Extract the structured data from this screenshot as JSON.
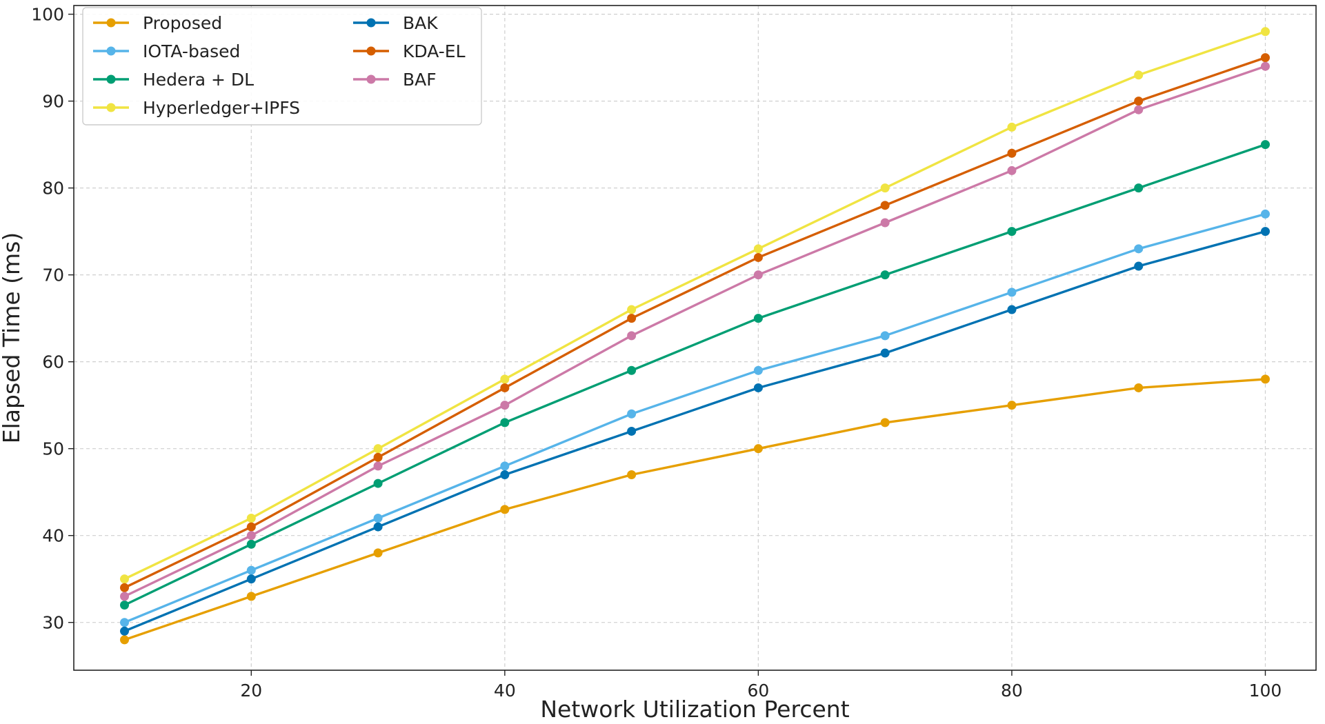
{
  "chart_data": {
    "type": "line",
    "title": "",
    "xlabel": "Network Utilization Percent",
    "ylabel": "Elapsed Time (ms)",
    "x": [
      10,
      20,
      30,
      40,
      50,
      60,
      70,
      80,
      90,
      100
    ],
    "xlim": [
      6,
      104
    ],
    "ylim": [
      24.5,
      101
    ],
    "xticks": [
      20,
      40,
      60,
      80,
      100
    ],
    "yticks": [
      30,
      40,
      50,
      60,
      70,
      80,
      90,
      100
    ],
    "grid": true,
    "legend_position": "top-left",
    "legend_columns": 2,
    "series": [
      {
        "name": "Proposed",
        "color": "#E69F00",
        "values": [
          28,
          33,
          38,
          43,
          47,
          50,
          53,
          55,
          57,
          58
        ]
      },
      {
        "name": "IOTA-based",
        "color": "#56B4E9",
        "values": [
          30,
          36,
          42,
          48,
          54,
          59,
          63,
          68,
          73,
          77
        ]
      },
      {
        "name": "Hedera + DL",
        "color": "#009E73",
        "values": [
          32,
          39,
          46,
          53,
          59,
          65,
          70,
          75,
          80,
          85
        ]
      },
      {
        "name": "Hyperledger+IPFS",
        "color": "#F0E442",
        "values": [
          35,
          42,
          50,
          58,
          66,
          73,
          80,
          87,
          93,
          98
        ]
      },
      {
        "name": "BAK",
        "color": "#0072B2",
        "values": [
          29,
          35,
          41,
          47,
          52,
          57,
          61,
          66,
          71,
          75
        ]
      },
      {
        "name": "KDA-EL",
        "color": "#D55E00",
        "values": [
          34,
          41,
          49,
          57,
          65,
          72,
          78,
          84,
          90,
          95
        ]
      },
      {
        "name": "BAF",
        "color": "#CC79A7",
        "values": [
          33,
          40,
          48,
          55,
          63,
          70,
          76,
          82,
          89,
          94
        ]
      }
    ]
  }
}
